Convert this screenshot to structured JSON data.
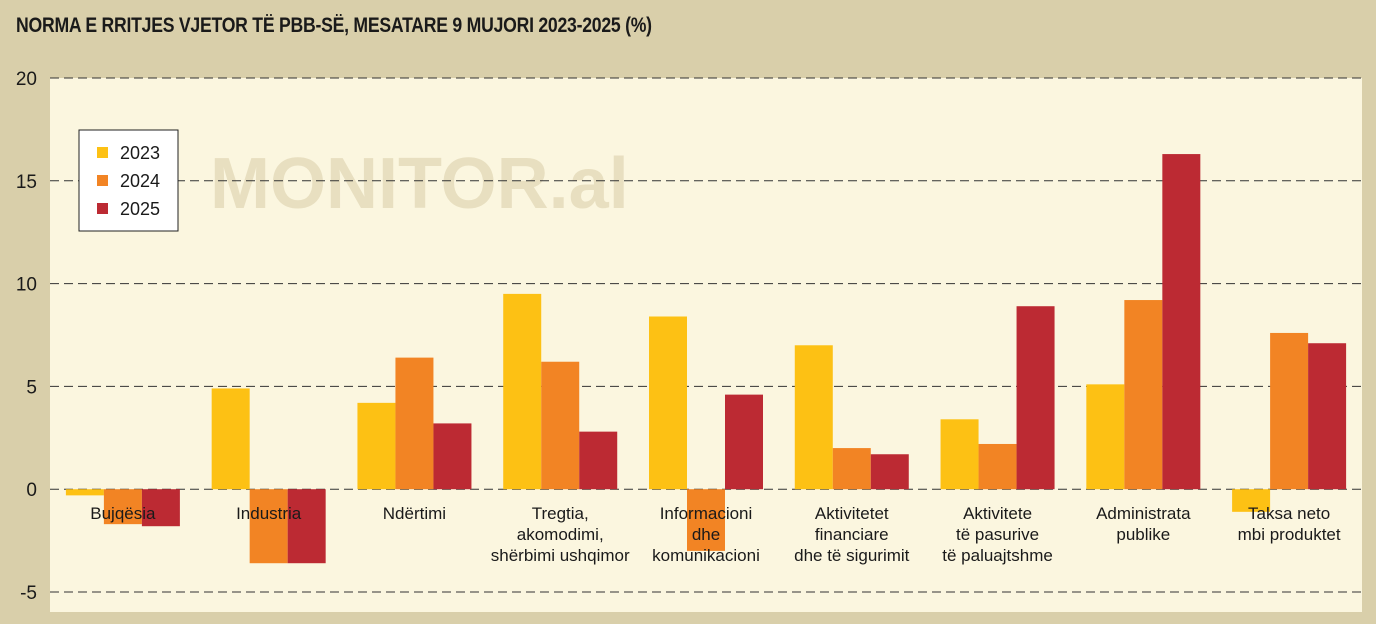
{
  "title": "NORMA E RRITJES VJETOR TË PBB-SË, MESATARE 9 MUJORI 2023-2025  (%)",
  "watermark": "MONITOR.al",
  "colors": {
    "background": "#d9cfaa",
    "plot_background": "#fbf6df",
    "2023": "#fdc114",
    "2024": "#f28424",
    "2025": "#bc2a33"
  },
  "chart_data": {
    "type": "bar",
    "title": "NORMA E RRITJES VJETOR TË PBB-SË, MESATARE 9 MUJORI 2023-2025  (%)",
    "xlabel": "",
    "ylabel": "",
    "ylim": [
      -5,
      20
    ],
    "yticks": [
      "20",
      "15",
      "10",
      "5",
      "0",
      "-5"
    ],
    "grid": true,
    "legend_position": "top-left",
    "categories": [
      [
        "Bujqësia"
      ],
      [
        "Industria"
      ],
      [
        "Ndërtimi"
      ],
      [
        "Tregtia,",
        "akomodimi,",
        "shërbimi ushqimor"
      ],
      [
        "Informacioni",
        "dhe",
        "komunikacioni"
      ],
      [
        "Aktivitetet",
        "financiare",
        "dhe të sigurimit"
      ],
      [
        "Aktivitete",
        "të pasurive",
        "të paluajtshme"
      ],
      [
        "Administrata",
        "publike"
      ],
      [
        "Taksa neto",
        "mbi produktet"
      ]
    ],
    "series": [
      {
        "name": "2023",
        "values": [
          -0.3,
          4.9,
          4.2,
          9.5,
          8.4,
          7.0,
          3.4,
          5.1,
          -1.1
        ]
      },
      {
        "name": "2024",
        "values": [
          -1.7,
          -3.6,
          6.4,
          6.2,
          -3.0,
          2.0,
          2.2,
          9.2,
          7.6
        ]
      },
      {
        "name": "2025",
        "values": [
          -1.8,
          -3.6,
          3.2,
          2.8,
          4.6,
          1.7,
          8.9,
          16.3,
          7.1
        ]
      }
    ]
  }
}
